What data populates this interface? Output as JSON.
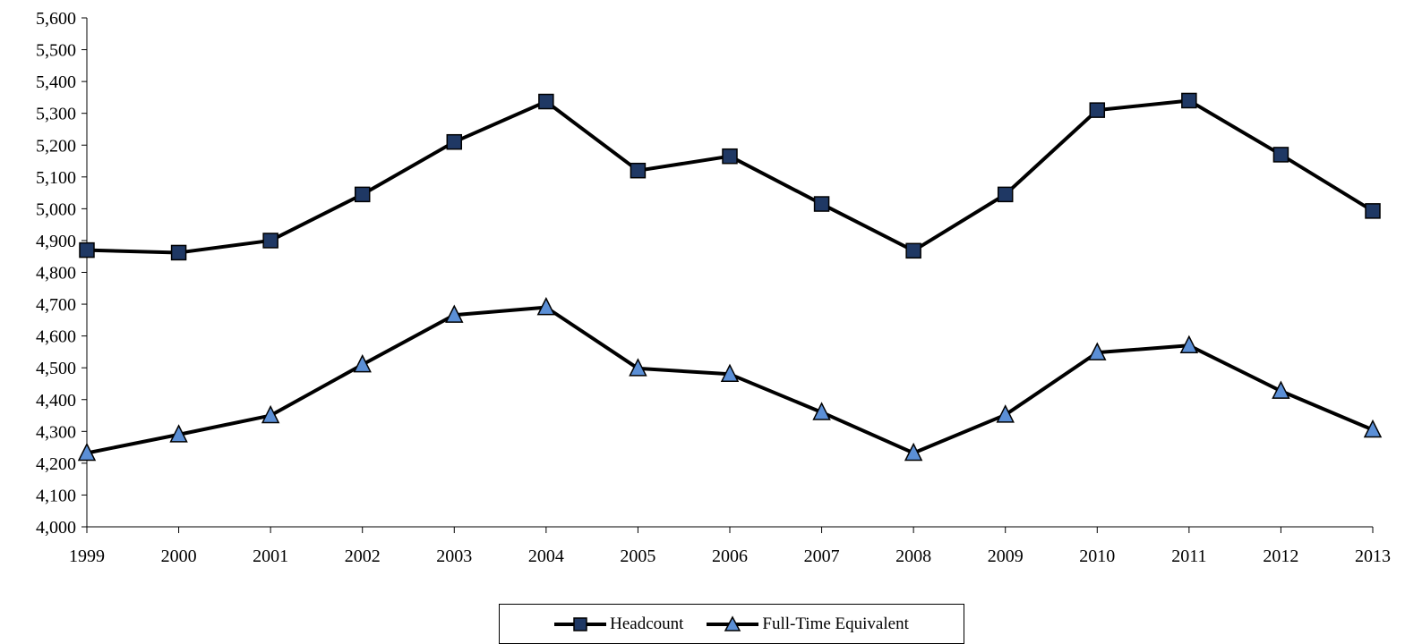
{
  "chart_data": {
    "type": "line",
    "title": "",
    "xlabel": "",
    "ylabel": "",
    "x": [
      "1999",
      "2000",
      "2001",
      "2002",
      "2003",
      "2004",
      "2005",
      "2006",
      "2007",
      "2008",
      "2009",
      "2010",
      "2011",
      "2012",
      "2013"
    ],
    "ylim": [
      4000,
      5600
    ],
    "ytick_step": 100,
    "grid": false,
    "legend_position": "bottom-center",
    "series": [
      {
        "name": "Headcount",
        "marker": "square",
        "marker_color": "#1f3864",
        "line_color": "#000000",
        "values": [
          4870,
          4862,
          4900,
          5045,
          5210,
          5337,
          5120,
          5165,
          5015,
          4868,
          5045,
          5310,
          5340,
          5170,
          4993
        ]
      },
      {
        "name": "Full-Time Equivalent",
        "marker": "triangle",
        "marker_color": "#5b8fd6",
        "line_color": "#000000",
        "values": [
          4232,
          4290,
          4350,
          4510,
          4666,
          4690,
          4498,
          4480,
          4360,
          4232,
          4352,
          4548,
          4570,
          4427,
          4305
        ]
      }
    ]
  }
}
